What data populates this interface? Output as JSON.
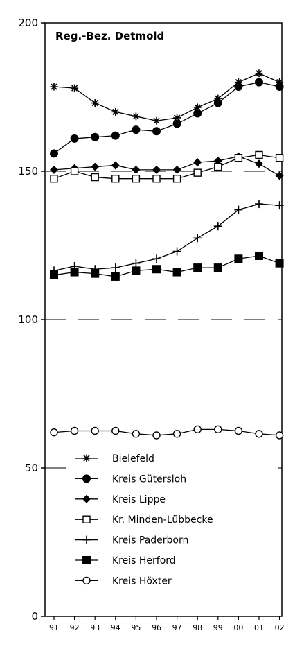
{
  "chart_data": {
    "type": "line",
    "title": "Reg.-Bez. Detmold",
    "xlabel": "",
    "ylabel": "",
    "categories": [
      "91",
      "92",
      "93",
      "94",
      "95",
      "96",
      "97",
      "98",
      "99",
      "00",
      "01",
      "02"
    ],
    "ylim": [
      0,
      200
    ],
    "yticks": [
      "0",
      "50",
      "100",
      "150",
      "200"
    ],
    "grid": "horizontal dashed at 50, 100, 150",
    "legend_position": "bottom-center",
    "series": [
      {
        "name": "Bielefeld",
        "marker": "asterisk",
        "values": [
          178.5,
          178,
          173,
          170,
          168.5,
          167,
          168,
          171.5,
          174.5,
          180,
          183,
          180
        ]
      },
      {
        "name": "Kreis Gütersloh",
        "marker": "filled-circle",
        "values": [
          156,
          161,
          161.5,
          162,
          164,
          163.5,
          166,
          169.5,
          173,
          178.5,
          180,
          178.5
        ]
      },
      {
        "name": "Kreis Lippe",
        "marker": "filled-diamond",
        "values": [
          150.5,
          151,
          151.5,
          152,
          150.5,
          150.5,
          150.5,
          153,
          153.5,
          155,
          152.5,
          148.5
        ]
      },
      {
        "name": "Kr. Minden-Lübbecke",
        "marker": "open-square",
        "values": [
          147.5,
          150,
          148,
          147.5,
          147.5,
          147.5,
          147.5,
          149.5,
          151.5,
          154.5,
          155.5,
          154.5
        ]
      },
      {
        "name": "Kreis Paderborn",
        "marker": "plus",
        "values": [
          116.5,
          118,
          117,
          117.5,
          119,
          120.5,
          123,
          127.5,
          131.5,
          137,
          139,
          138.5
        ]
      },
      {
        "name": "Kreis Herford",
        "marker": "filled-square",
        "values": [
          115,
          116,
          115.5,
          114.5,
          116.5,
          117,
          116,
          117.5,
          117.5,
          120.5,
          121.5,
          119
        ]
      },
      {
        "name": "Kreis Höxter",
        "marker": "open-circle",
        "values": [
          62,
          62.5,
          62.5,
          62.5,
          61.5,
          61,
          61.5,
          63,
          63,
          62.5,
          61.5,
          61
        ]
      }
    ]
  }
}
